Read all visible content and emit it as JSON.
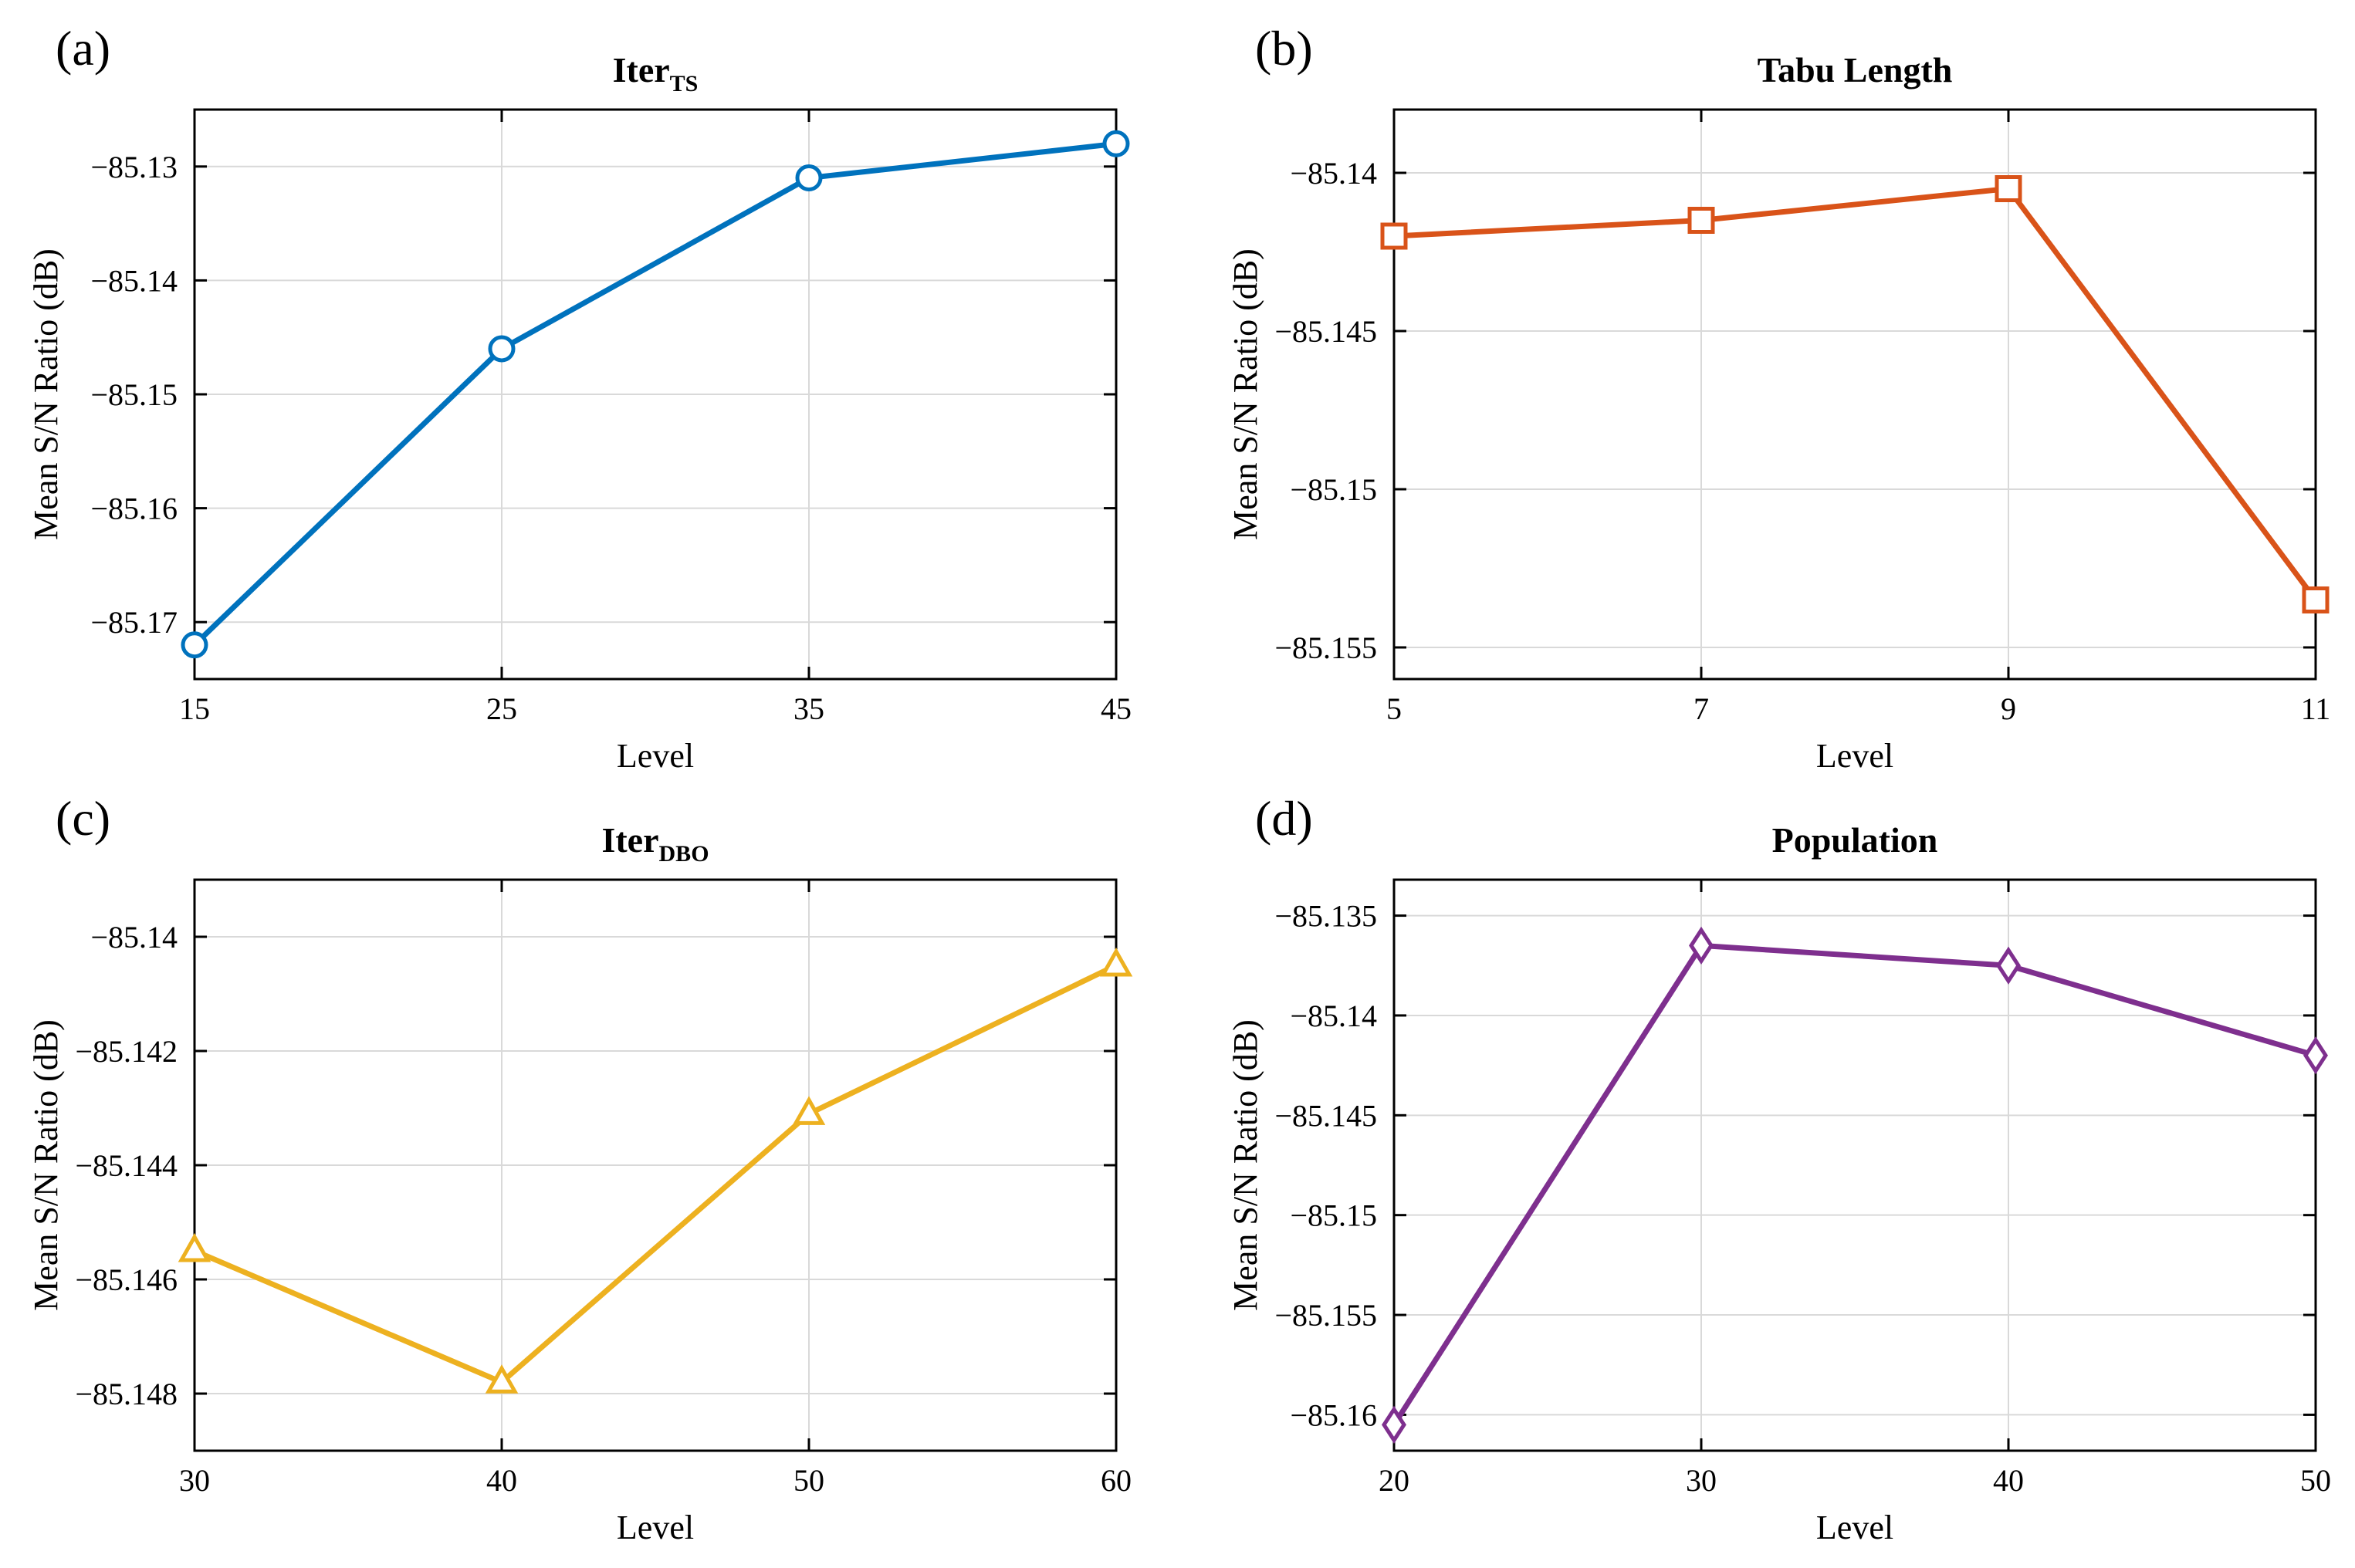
{
  "chart_data": [
    {
      "type": "line",
      "panel": "(a)",
      "title": "Iter",
      "title_sub": "TS",
      "xlabel": "Level",
      "ylabel": "Mean S/N Ratio (dB)",
      "x": [
        15,
        25,
        35,
        45
      ],
      "x_ticks": [
        15,
        25,
        35,
        45
      ],
      "x_tick_labels": [
        "15",
        "25",
        "35",
        "45"
      ],
      "xlim": [
        15,
        45
      ],
      "values": [
        -85.172,
        -85.146,
        -85.131,
        -85.128
      ],
      "y_ticks": [
        -85.17,
        -85.16,
        -85.15,
        -85.14,
        -85.13
      ],
      "y_tick_labels": [
        "−85.17",
        "−85.16",
        "−85.15",
        "−85.14",
        "−85.13"
      ],
      "ylim": [
        -85.175,
        -85.125
      ],
      "color": "#0072BD",
      "marker": "circle",
      "grid": true
    },
    {
      "type": "line",
      "panel": "(b)",
      "title": "Tabu Length",
      "title_sub": "",
      "xlabel": "Level",
      "ylabel": "Mean S/N Ratio (dB)",
      "x": [
        5,
        7,
        9,
        11
      ],
      "x_ticks": [
        5,
        7,
        9,
        11
      ],
      "x_tick_labels": [
        "5",
        "7",
        "9",
        "11"
      ],
      "xlim": [
        5,
        11
      ],
      "values": [
        -85.142,
        -85.1415,
        -85.1405,
        -85.1535
      ],
      "y_ticks": [
        -85.14,
        -85.145,
        -85.15,
        -85.155
      ],
      "y_tick_labels": [
        "−85.14",
        "−85.145",
        "−85.15",
        "−85.155"
      ],
      "ylim": [
        -85.156,
        -85.138
      ],
      "color": "#D95319",
      "marker": "square",
      "grid": true
    },
    {
      "type": "line",
      "panel": "(c)",
      "title": "Iter",
      "title_sub": "DBO",
      "xlabel": "Level",
      "ylabel": "Mean S/N Ratio (dB)",
      "x": [
        30,
        40,
        50,
        60
      ],
      "x_ticks": [
        30,
        40,
        50,
        60
      ],
      "x_tick_labels": [
        "30",
        "40",
        "50",
        "60"
      ],
      "xlim": [
        30,
        60
      ],
      "values": [
        -85.1455,
        -85.1478,
        -85.1431,
        -85.1405
      ],
      "y_ticks": [
        -85.14,
        -85.142,
        -85.144,
        -85.146,
        -85.148
      ],
      "y_tick_labels": [
        "−85.14",
        "−85.142",
        "−85.144",
        "−85.146",
        "−85.148"
      ],
      "ylim": [
        -85.149,
        -85.139
      ],
      "color": "#EDB120",
      "marker": "triangle",
      "grid": true
    },
    {
      "type": "line",
      "panel": "(d)",
      "title": "Population",
      "title_sub": "",
      "xlabel": "Level",
      "ylabel": "Mean S/N Ratio (dB)",
      "x": [
        20,
        30,
        40,
        50
      ],
      "x_ticks": [
        20,
        30,
        40,
        50
      ],
      "x_tick_labels": [
        "20",
        "30",
        "40",
        "50"
      ],
      "xlim": [
        20,
        50
      ],
      "values": [
        -85.1605,
        -85.1365,
        -85.1375,
        -85.142
      ],
      "y_ticks": [
        -85.135,
        -85.14,
        -85.145,
        -85.15,
        -85.155,
        -85.16
      ],
      "y_tick_labels": [
        "−85.135",
        "−85.14",
        "−85.145",
        "−85.15",
        "−85.155",
        "−85.16"
      ],
      "ylim": [
        -85.1618,
        -85.1332
      ],
      "color": "#7E2F8E",
      "marker": "diamond",
      "grid": true
    }
  ]
}
